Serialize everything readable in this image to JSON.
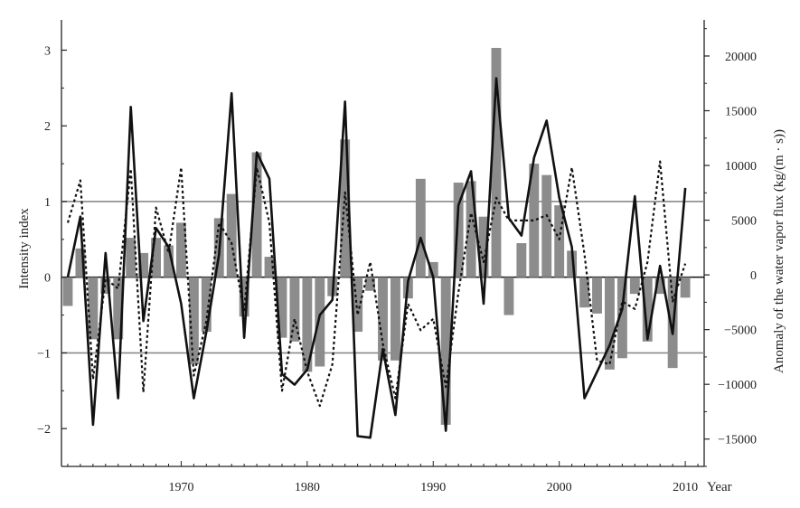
{
  "chart_data": {
    "type": "bar+line",
    "title": "",
    "xlabel": "Year",
    "ylabel_left": "Intensity index",
    "ylabel_right": "Anomaly of the water vapor flux (kg/(m · s))",
    "xlim": [
      1960.5,
      2011.5
    ],
    "ylim_left": [
      -2.5,
      3.4
    ],
    "ylim_right": [
      -17500,
      23300
    ],
    "x_ticks": [
      1970,
      1980,
      1990,
      2000,
      2010
    ],
    "y_ticks_left": [
      -2,
      -1,
      0,
      1,
      2,
      3
    ],
    "y_tick_labels_left": [
      "−2",
      "−1",
      "0",
      "1",
      "2",
      "3"
    ],
    "y_ticks_right": [
      -15000,
      -10000,
      -5000,
      0,
      5000,
      10000,
      15000,
      20000
    ],
    "y_tick_labels_right": [
      "−15000",
      "−10000",
      "−5000",
      "0",
      "5000",
      "10000",
      "15000",
      "20000"
    ],
    "reference_lines_left": [
      1,
      0,
      -1
    ],
    "grid": false,
    "colors": {
      "bars": "#8c8c8c",
      "solid_line": "#111111",
      "dotted_line": "#111111",
      "reference": "#8a8a8a"
    },
    "years": [
      1961,
      1962,
      1963,
      1964,
      1965,
      1966,
      1967,
      1968,
      1969,
      1970,
      1971,
      1972,
      1973,
      1974,
      1975,
      1976,
      1977,
      1978,
      1979,
      1980,
      1981,
      1982,
      1983,
      1984,
      1985,
      1986,
      1987,
      1988,
      1989,
      1990,
      1991,
      1992,
      1993,
      1994,
      1995,
      1996,
      1997,
      1998,
      1999,
      2000,
      2001,
      2002,
      2003,
      2004,
      2005,
      2006,
      2007,
      2008,
      2009,
      2010
    ],
    "series": [
      {
        "kind": "bar",
        "axis": "left",
        "values": [
          -0.38,
          0.38,
          -0.82,
          -0.22,
          -0.82,
          0.52,
          0.32,
          0.52,
          0.42,
          0.72,
          -1.15,
          -0.72,
          0.78,
          1.1,
          -0.52,
          1.65,
          0.27,
          -0.8,
          -0.85,
          -1.25,
          -1.18,
          -0.25,
          1.82,
          -0.72,
          -0.18,
          -1.1,
          -1.1,
          -0.28,
          1.3,
          0.2,
          -1.95,
          1.25,
          1.27,
          0.8,
          3.03,
          -0.5,
          0.45,
          1.5,
          1.35,
          0.95,
          0.35,
          -0.4,
          -0.48,
          -1.22,
          -1.07,
          -0.22,
          -0.85,
          -0.22,
          -1.2,
          -0.27
        ]
      },
      {
        "kind": "line",
        "style": "solid",
        "axis": "left",
        "values": [
          0,
          0.8,
          -1.95,
          0.32,
          -1.6,
          2.25,
          -0.58,
          0.65,
          0.4,
          -0.35,
          -1.6,
          -0.72,
          0.3,
          2.43,
          -0.8,
          1.65,
          1.3,
          -1.28,
          -1.42,
          -1.22,
          -0.5,
          -0.3,
          2.32,
          -2.1,
          -2.12,
          -0.95,
          -1.82,
          -0.05,
          0.52,
          0,
          -2.03,
          0.95,
          1.4,
          -0.35,
          2.63,
          0.78,
          0.55,
          1.58,
          2.07,
          1.05,
          0.4,
          -1.6,
          -1.25,
          -0.9,
          -0.42,
          1.07,
          -0.82,
          0.15,
          -0.75,
          1.18
        ]
      },
      {
        "kind": "line",
        "style": "dotted",
        "axis": "left",
        "values": [
          0.72,
          1.28,
          -1.35,
          -0.02,
          -0.15,
          1.43,
          -1.52,
          0.92,
          0.32,
          1.45,
          -1.3,
          -0.58,
          0.72,
          0.45,
          -0.45,
          1.45,
          0.72,
          -1.5,
          -0.55,
          -1.25,
          -1.7,
          -1.15,
          1.12,
          -0.5,
          0.2,
          -0.88,
          -1.6,
          -0.35,
          -0.7,
          -0.55,
          -1.45,
          -0.2,
          0.85,
          0.2,
          1.05,
          0.75,
          0.75,
          0.75,
          0.82,
          0.5,
          1.45,
          0.3,
          -1.1,
          -1.15,
          -0.32,
          -0.42,
          0.2,
          1.53,
          -0.32,
          0.18
        ]
      }
    ]
  }
}
